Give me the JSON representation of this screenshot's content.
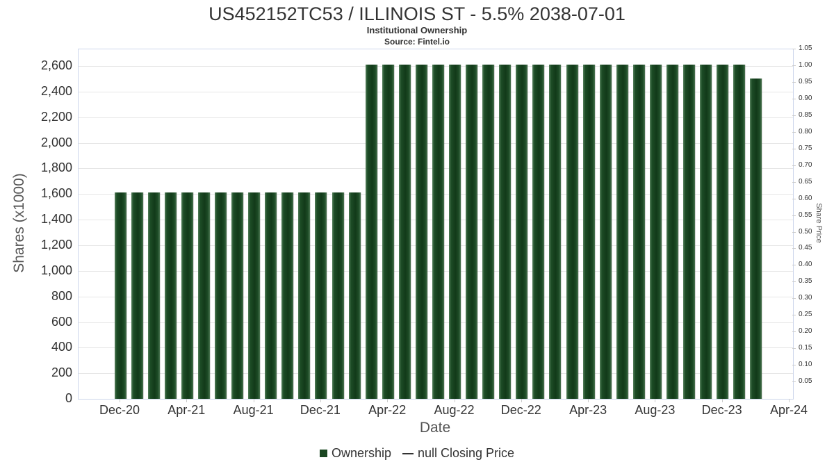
{
  "chart_data": {
    "type": "bar",
    "title": "US452152TC53 / ILLINOIS ST - 5.5% 2038-07-01",
    "subtitle": "Institutional Ownership",
    "source": "Source: Fintel.io",
    "xlabel": "Date",
    "ylabel": "Shares (x1000)",
    "ylabel_right": "Share Price",
    "ylim_left": [
      0,
      2730
    ],
    "ylim_right": [
      0,
      1.05
    ],
    "grid": true,
    "legend_position": "bottom",
    "bar_color": "#1a4621",
    "legend": [
      {
        "label": "Ownership",
        "marker": "square",
        "color": "#1a4621"
      },
      {
        "label": "null Closing Price",
        "marker": "line",
        "color": "#333333"
      }
    ],
    "x_ticks": [
      "Dec-20",
      "Apr-21",
      "Aug-21",
      "Dec-21",
      "Apr-22",
      "Aug-22",
      "Dec-22",
      "Apr-23",
      "Aug-23",
      "Dec-23",
      "Apr-24"
    ],
    "y_ticks_left": [
      {
        "value": 0,
        "label": "0"
      },
      {
        "value": 200,
        "label": "200"
      },
      {
        "value": 400,
        "label": "400"
      },
      {
        "value": 600,
        "label": "600"
      },
      {
        "value": 800,
        "label": "800"
      },
      {
        "value": 1000,
        "label": "1,000"
      },
      {
        "value": 1200,
        "label": "1,200"
      },
      {
        "value": 1400,
        "label": "1,400"
      },
      {
        "value": 1600,
        "label": "1,600"
      },
      {
        "value": 1800,
        "label": "1,800"
      },
      {
        "value": 2000,
        "label": "2,000"
      },
      {
        "value": 2200,
        "label": "2,200"
      },
      {
        "value": 2400,
        "label": "2,400"
      },
      {
        "value": 2600,
        "label": "2,600"
      }
    ],
    "y_ticks_right": [
      "0.05",
      "0.10",
      "0.15",
      "0.20",
      "0.25",
      "0.30",
      "0.35",
      "0.40",
      "0.45",
      "0.50",
      "0.55",
      "0.60",
      "0.65",
      "0.70",
      "0.75",
      "0.80",
      "0.85",
      "0.90",
      "0.95",
      "1.00",
      "1.05"
    ],
    "months": [
      "Dec-20",
      "Jan-21",
      "Feb-21",
      "Mar-21",
      "Apr-21",
      "May-21",
      "Jun-21",
      "Jul-21",
      "Aug-21",
      "Sep-21",
      "Oct-21",
      "Nov-21",
      "Dec-21",
      "Jan-22",
      "Feb-22",
      "Mar-22",
      "Apr-22",
      "May-22",
      "Jun-22",
      "Jul-22",
      "Aug-22",
      "Sep-22",
      "Oct-22",
      "Nov-22",
      "Dec-22",
      "Jan-23",
      "Feb-23",
      "Mar-23",
      "Apr-23",
      "May-23",
      "Jun-23",
      "Jul-23",
      "Aug-23",
      "Sep-23",
      "Oct-23",
      "Nov-23",
      "Dec-23",
      "Jan-24",
      "Feb-24"
    ],
    "values": [
      1610,
      1610,
      1610,
      1610,
      1610,
      1610,
      1610,
      1610,
      1610,
      1610,
      1610,
      1610,
      1610,
      1610,
      1610,
      2610,
      2610,
      2610,
      2610,
      2610,
      2610,
      2610,
      2610,
      2610,
      2610,
      2610,
      2610,
      2610,
      2610,
      2610,
      2610,
      2610,
      2610,
      2610,
      2610,
      2610,
      2610,
      2610,
      2500
    ]
  }
}
